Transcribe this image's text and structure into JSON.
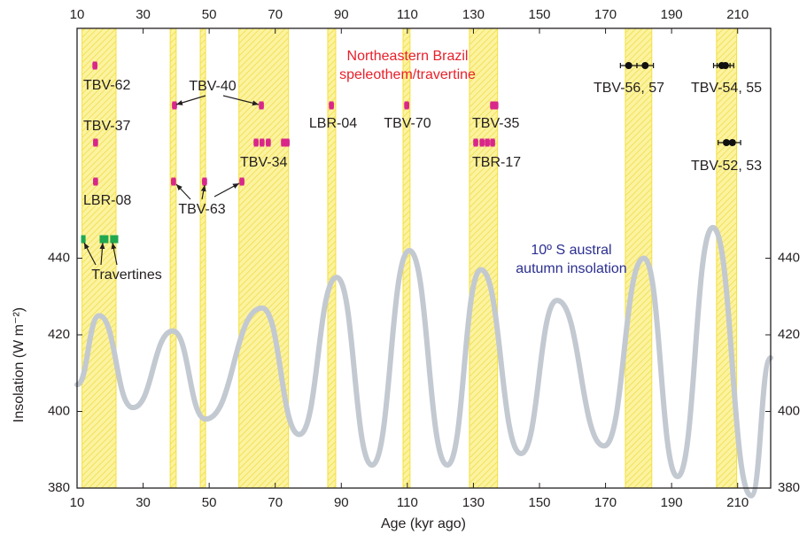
{
  "chart_data": {
    "type": "line",
    "xlabel": "Age (kyr ago)",
    "ylabel": "Insolation (W m⁻²)",
    "xlim": [
      10,
      220
    ],
    "xticks": [
      10,
      30,
      50,
      70,
      90,
      110,
      130,
      150,
      170,
      190,
      210
    ],
    "ylim": [
      380,
      500
    ],
    "yticks": [
      380,
      400,
      420,
      440
    ],
    "insolation": {
      "color": "#c3c9d1",
      "x": [
        10,
        16.7,
        26.9,
        39.0,
        48.9,
        66.0,
        77.3,
        88.6,
        99.3,
        110.6,
        122.1,
        132.3,
        144.4,
        155.3,
        169.6,
        181.6,
        191.8,
        202.5,
        214.1,
        220
      ],
      "values": [
        407,
        425,
        401,
        421,
        398,
        427,
        394,
        435,
        386,
        442,
        386,
        437,
        389,
        429,
        391,
        440,
        383,
        448,
        378,
        414
      ]
    },
    "intervals": [
      [
        11.5,
        21.8
      ],
      [
        38.2,
        40
      ],
      [
        47.3,
        48.9
      ],
      [
        59,
        74
      ],
      [
        85.9,
        88.3
      ],
      [
        108.7,
        110.8
      ],
      [
        128.8,
        137.3
      ],
      [
        176,
        184
      ],
      [
        203.6,
        209.7
      ]
    ],
    "interval_color": "#f3e03c",
    "annotations": [
      {
        "lines": [
          "Northeastern Brazil",
          "speleothem/travertine"
        ],
        "color": "#e8202a"
      },
      {
        "lines": [
          "10º S austral",
          "autumn insolation"
        ],
        "color": "#2b2f8f"
      }
    ],
    "samples": [
      {
        "label": "TBV-62",
        "color": "#d9268a",
        "marker": "bar",
        "ages": [
          15.4
        ],
        "error": 0.6
      },
      {
        "label": "TBV-56, 57",
        "color": "#111111",
        "marker": "circle",
        "ages": [
          177,
          182
        ],
        "error": 2.5
      },
      {
        "label": "TBV-54, 55",
        "color": "#111111",
        "marker": "circle",
        "ages": [
          205.2,
          206.3
        ],
        "error": 2.5
      },
      {
        "label": "TBV-40",
        "color": "#d9268a",
        "marker": "bar",
        "ages": [
          39.5,
          65.8
        ],
        "error": 0.6
      },
      {
        "label": "LBR-04",
        "color": "#d9268a",
        "marker": "bar",
        "ages": [
          87
        ],
        "error": 0.6
      },
      {
        "label": "TBV-70",
        "color": "#d9268a",
        "marker": "bar",
        "ages": [
          109.8
        ],
        "error": 0.6
      },
      {
        "label": "TBV-35",
        "color": "#d9268a",
        "marker": "bar",
        "ages": [
          135.8,
          136.8
        ],
        "error": 0.6
      },
      {
        "label": "TBV-37",
        "color": "#d9268a",
        "marker": "bar",
        "ages": [
          15.6
        ],
        "error": 0.6
      },
      {
        "label": "TBV-34",
        "color": "#d9268a",
        "marker": "bar",
        "ages": [
          64.2,
          66,
          67.9,
          72.5,
          73.6
        ],
        "error": 0.6
      },
      {
        "label": "TBR-17",
        "color": "#d9268a",
        "marker": "bar",
        "ages": [
          130.7,
          132.6,
          134.2,
          135.8
        ],
        "error": 0.6
      },
      {
        "label": "TBV-52, 53",
        "color": "#111111",
        "marker": "circle",
        "ages": [
          206.6,
          208.4
        ],
        "error": 2.5
      },
      {
        "label": "LBR-08",
        "color": "#d9268a",
        "marker": "bar",
        "ages": [
          15.6
        ],
        "error": 0.6
      },
      {
        "label": "TBV-63",
        "color": "#d9268a",
        "marker": "bar",
        "ages": [
          39.2,
          48.6,
          59.9
        ],
        "error": 0.6
      },
      {
        "label": "Travertines",
        "color": "#1fa84f",
        "marker": "bar",
        "ages": [
          11.9,
          17.5,
          18.8,
          20.7,
          21.8
        ],
        "error": 0.5
      }
    ]
  }
}
